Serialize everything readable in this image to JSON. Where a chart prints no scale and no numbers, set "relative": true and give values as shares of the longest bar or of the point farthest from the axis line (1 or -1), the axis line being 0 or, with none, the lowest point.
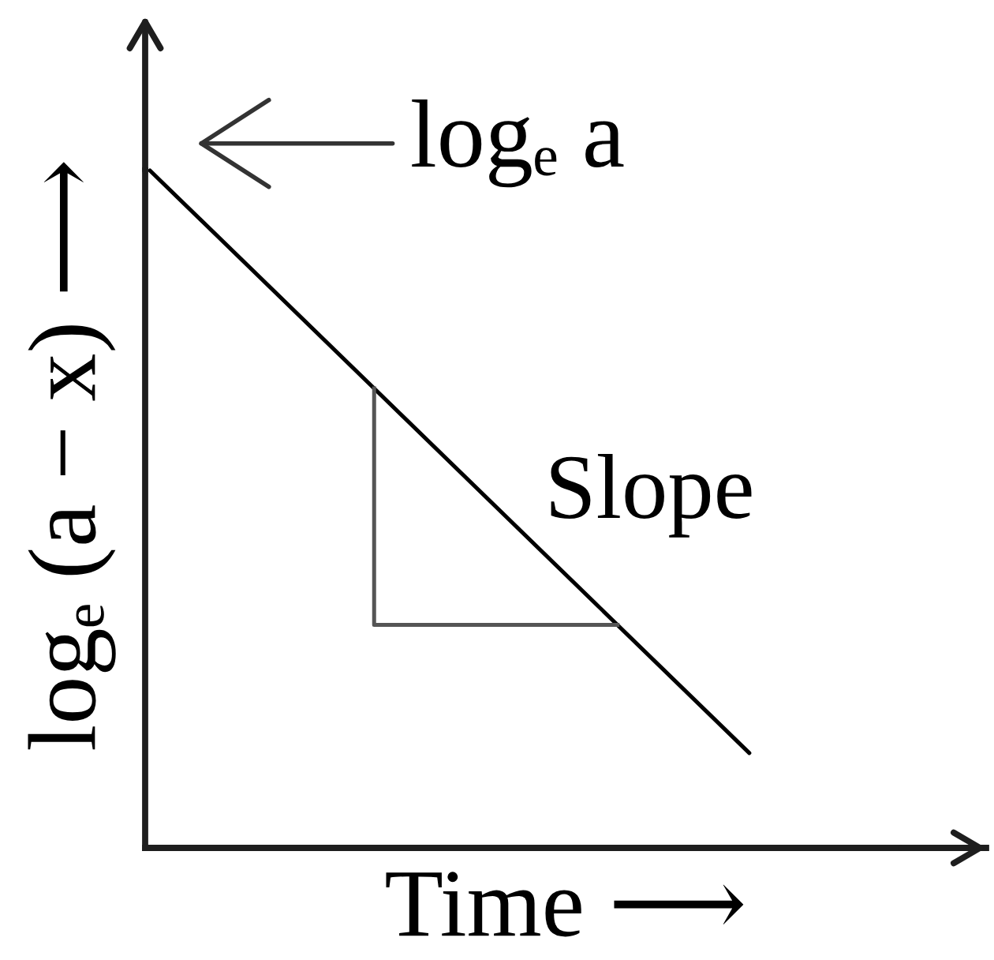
{
  "chart_data": {
    "type": "line",
    "relative": true,
    "categories": [
      null,
      null
    ],
    "series": [
      {
        "color": "#000000",
        "values": [
          1,
          0.14
        ]
      }
    ],
    "xlabel": "Time ⟶",
    "ylabel": "logₑ (a − x) ⟶",
    "annotations": [
      "logₑ a",
      "Slope"
    ]
  }
}
